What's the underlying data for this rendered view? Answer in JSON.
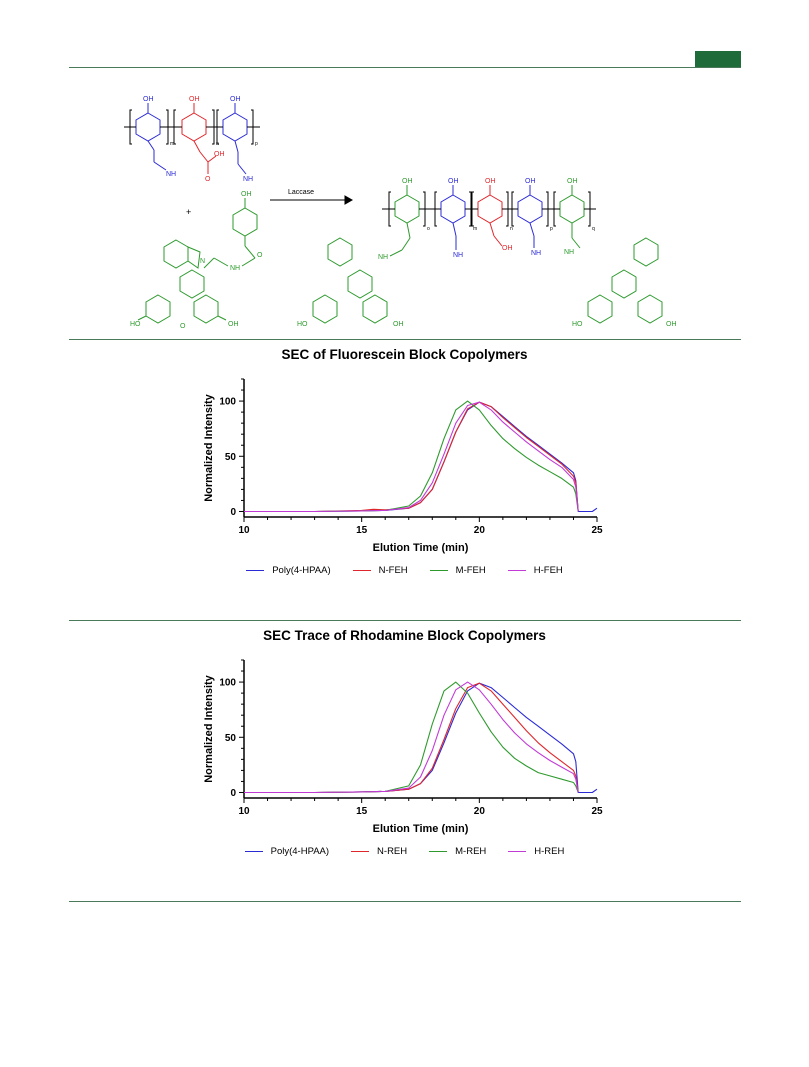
{
  "header": {
    "accent_color": "#1f6b3a"
  },
  "scheme": {
    "reagent_label": "Laccase",
    "plus": "+",
    "labels": {
      "oh": "OH",
      "nh2": "NH",
      "nh2_sub": "2",
      "cooh": "OH",
      "carbonyl_o": "O",
      "nh": "NH",
      "n": "N",
      "ho": "HO",
      "o": "O",
      "sub_m": "m",
      "sub_n": "n",
      "sub_p": "p",
      "sub_o": "o",
      "sub_q": "q"
    },
    "colors": {
      "hpaa": "#e0262b",
      "amine": "#2b2bd6",
      "dye": "#2e9a2e",
      "bond": "#000000"
    }
  },
  "charts": [
    {
      "title": "SEC of Fluorescein Block Copolymers",
      "ylabel": "Normalized Intensity",
      "xlabel": "Elution Time (min)",
      "chart_data": {
        "type": "line",
        "title": "SEC of Fluorescein Block Copolymers",
        "xlabel": "Elution Time (min)",
        "ylabel": "Normalized Intensity",
        "xlim": [
          10,
          25
        ],
        "ylim": [
          -5,
          120
        ],
        "xticks": [
          10,
          15,
          20,
          25
        ],
        "yticks": [
          0,
          50,
          100
        ],
        "legend_position": "bottom",
        "series": [
          {
            "name": "Poly(4-HPAA)",
            "color": "#2b2bd6",
            "points": [
              [
                10,
                0
              ],
              [
                13,
                0
              ],
              [
                15,
                0.5
              ],
              [
                16,
                1
              ],
              [
                17,
                3
              ],
              [
                17.5,
                8
              ],
              [
                18,
                20
              ],
              [
                18.5,
                45
              ],
              [
                19,
                72
              ],
              [
                19.5,
                92
              ],
              [
                20,
                99
              ],
              [
                20.5,
                95
              ],
              [
                21,
                86
              ],
              [
                21.5,
                77
              ],
              [
                22,
                68
              ],
              [
                22.5,
                60
              ],
              [
                23,
                52
              ],
              [
                23.5,
                44
              ],
              [
                24,
                35
              ],
              [
                24.1,
                28
              ],
              [
                24.2,
                0
              ],
              [
                24.8,
                0
              ],
              [
                25,
                3
              ]
            ]
          },
          {
            "name": "N-FEH",
            "color": "#e0262b",
            "points": [
              [
                10,
                0
              ],
              [
                13,
                0
              ],
              [
                15,
                1
              ],
              [
                15.5,
                2
              ],
              [
                16,
                1.5
              ],
              [
                17,
                3
              ],
              [
                17.5,
                8
              ],
              [
                18,
                20
              ],
              [
                18.5,
                45
              ],
              [
                19,
                72
              ],
              [
                19.5,
                93
              ],
              [
                20,
                99
              ],
              [
                20.5,
                95
              ],
              [
                21,
                85
              ],
              [
                21.5,
                76
              ],
              [
                22,
                67
              ],
              [
                22.5,
                59
              ],
              [
                23,
                51
              ],
              [
                23.5,
                43
              ],
              [
                24,
                32
              ],
              [
                24.1,
                26
              ],
              [
                24.2,
                0
              ]
            ]
          },
          {
            "name": "M-FEH",
            "color": "#2e9a2e",
            "points": [
              [
                10,
                0
              ],
              [
                13,
                0
              ],
              [
                15,
                0.5
              ],
              [
                16,
                1
              ],
              [
                17,
                5
              ],
              [
                17.5,
                14
              ],
              [
                18,
                35
              ],
              [
                18.5,
                66
              ],
              [
                19,
                92
              ],
              [
                19.5,
                100
              ],
              [
                20,
                92
              ],
              [
                20.5,
                78
              ],
              [
                21,
                66
              ],
              [
                21.5,
                57
              ],
              [
                22,
                49
              ],
              [
                22.5,
                42
              ],
              [
                23,
                36
              ],
              [
                23.5,
                30
              ],
              [
                24,
                22
              ],
              [
                24.1,
                16
              ],
              [
                24.2,
                0
              ]
            ]
          },
          {
            "name": "H-FEH",
            "color": "#c23ad6",
            "points": [
              [
                10,
                0
              ],
              [
                13,
                0
              ],
              [
                15,
                0.5
              ],
              [
                16,
                1
              ],
              [
                17,
                3.5
              ],
              [
                17.5,
                10
              ],
              [
                18,
                26
              ],
              [
                18.5,
                52
              ],
              [
                19,
                80
              ],
              [
                19.5,
                96
              ],
              [
                20,
                99
              ],
              [
                20.5,
                92
              ],
              [
                21,
                81
              ],
              [
                21.5,
                72
              ],
              [
                22,
                63
              ],
              [
                22.5,
                55
              ],
              [
                23,
                47
              ],
              [
                23.5,
                40
              ],
              [
                24,
                29
              ],
              [
                24.1,
                22
              ],
              [
                24.2,
                0
              ]
            ]
          }
        ]
      },
      "legend": [
        "Poly(4-HPAA)",
        "N-FEH",
        "M-FEH",
        "H-FEH"
      ]
    },
    {
      "title": "SEC Trace of Rhodamine Block Copolymers",
      "ylabel": "Normalized Intensity",
      "xlabel": "Elution Time (min)",
      "chart_data": {
        "type": "line",
        "title": "SEC Trace of Rhodamine Block Copolymers",
        "xlabel": "Elution Time (min)",
        "ylabel": "Normalized Intensity",
        "xlim": [
          10,
          25
        ],
        "ylim": [
          -5,
          120
        ],
        "xticks": [
          10,
          15,
          20,
          25
        ],
        "yticks": [
          0,
          50,
          100
        ],
        "legend_position": "bottom",
        "series": [
          {
            "name": "Poly(4-HPAA)",
            "color": "#2b2bd6",
            "points": [
              [
                10,
                0
              ],
              [
                13,
                0
              ],
              [
                15,
                0.5
              ],
              [
                16,
                1
              ],
              [
                17,
                3
              ],
              [
                17.5,
                8
              ],
              [
                18,
                20
              ],
              [
                18.5,
                45
              ],
              [
                19,
                72
              ],
              [
                19.5,
                92
              ],
              [
                20,
                99
              ],
              [
                20.5,
                95
              ],
              [
                21,
                86
              ],
              [
                21.5,
                77
              ],
              [
                22,
                68
              ],
              [
                22.5,
                60
              ],
              [
                23,
                52
              ],
              [
                23.5,
                44
              ],
              [
                24,
                35
              ],
              [
                24.1,
                28
              ],
              [
                24.2,
                0
              ],
              [
                24.8,
                0
              ],
              [
                25,
                3
              ]
            ]
          },
          {
            "name": "N-REH",
            "color": "#e0262b",
            "points": [
              [
                10,
                0
              ],
              [
                13,
                0
              ],
              [
                15,
                0.5
              ],
              [
                16,
                1
              ],
              [
                17,
                3
              ],
              [
                17.5,
                8
              ],
              [
                18,
                22
              ],
              [
                18.5,
                48
              ],
              [
                19,
                76
              ],
              [
                19.5,
                95
              ],
              [
                20,
                99
              ],
              [
                20.5,
                92
              ],
              [
                21,
                80
              ],
              [
                21.5,
                68
              ],
              [
                22,
                56
              ],
              [
                22.5,
                45
              ],
              [
                23,
                36
              ],
              [
                23.5,
                28
              ],
              [
                24,
                20
              ],
              [
                24.1,
                15
              ],
              [
                24.2,
                0
              ]
            ]
          },
          {
            "name": "M-REH",
            "color": "#2e9a2e",
            "points": [
              [
                10,
                0
              ],
              [
                13,
                0
              ],
              [
                15,
                0.5
              ],
              [
                16,
                1
              ],
              [
                17,
                6
              ],
              [
                17.5,
                25
              ],
              [
                18,
                62
              ],
              [
                18.5,
                92
              ],
              [
                19,
                100
              ],
              [
                19.5,
                90
              ],
              [
                20,
                72
              ],
              [
                20.5,
                55
              ],
              [
                21,
                41
              ],
              [
                21.5,
                31
              ],
              [
                22,
                24
              ],
              [
                22.5,
                18
              ],
              [
                23,
                15
              ],
              [
                23.5,
                12
              ],
              [
                24,
                9
              ],
              [
                24.1,
                6
              ],
              [
                24.2,
                0
              ]
            ]
          },
          {
            "name": "H-REH",
            "color": "#c23ad6",
            "points": [
              [
                10,
                0
              ],
              [
                13,
                0
              ],
              [
                15,
                0.5
              ],
              [
                16,
                1
              ],
              [
                17,
                4
              ],
              [
                17.5,
                14
              ],
              [
                18,
                38
              ],
              [
                18.5,
                70
              ],
              [
                19,
                93
              ],
              [
                19.5,
                100
              ],
              [
                20,
                93
              ],
              [
                20.5,
                80
              ],
              [
                21,
                66
              ],
              [
                21.5,
                54
              ],
              [
                22,
                44
              ],
              [
                22.5,
                36
              ],
              [
                23,
                29
              ],
              [
                23.5,
                23
              ],
              [
                24,
                17
              ],
              [
                24.1,
                12
              ],
              [
                24.2,
                0
              ]
            ]
          }
        ]
      },
      "legend": [
        "Poly(4-HPAA)",
        "N-REH",
        "M-REH",
        "H-REH"
      ]
    }
  ]
}
